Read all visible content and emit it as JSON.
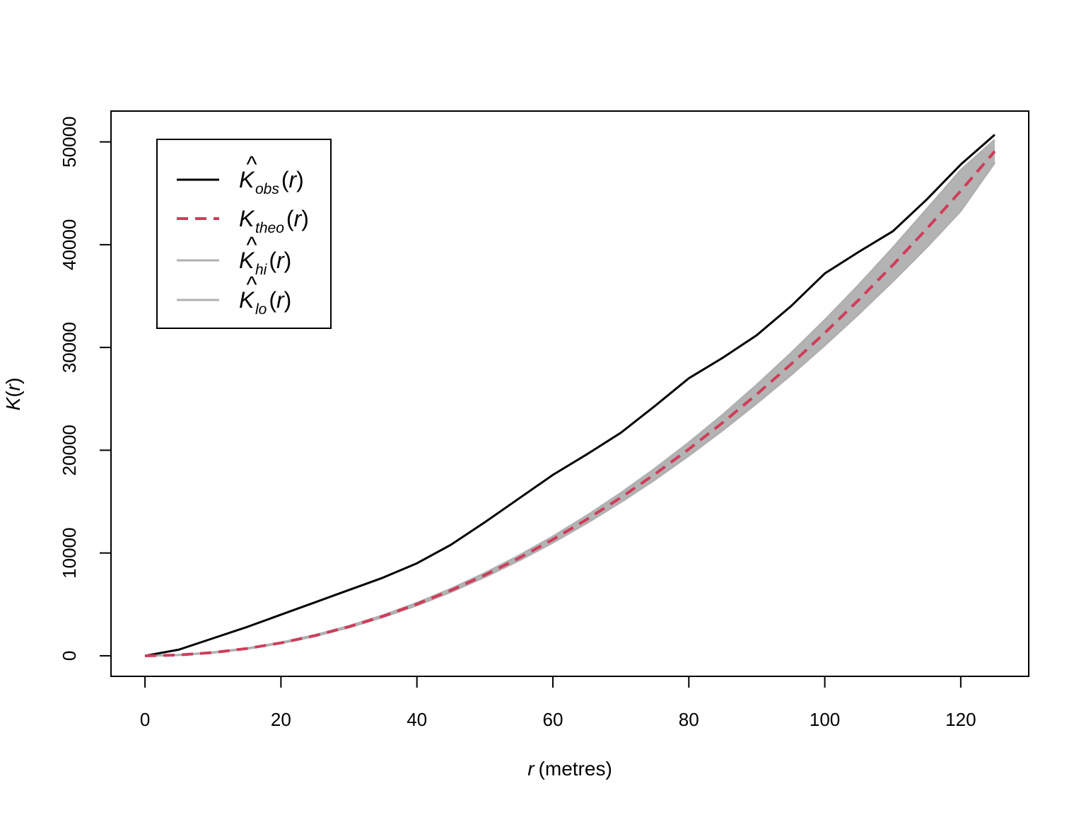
{
  "chart_data": {
    "type": "line",
    "xlabel": {
      "var": "r",
      "unit": "(metres)"
    },
    "ylabel": {
      "func": "K",
      "arg": "r"
    },
    "xlim": [
      -5,
      130
    ],
    "ylim": [
      -2000,
      53000
    ],
    "xticks": [
      0,
      20,
      40,
      60,
      80,
      100,
      120
    ],
    "yticks": [
      0,
      10000,
      20000,
      30000,
      40000,
      50000
    ],
    "legend_position": "top-left",
    "x": [
      0,
      5,
      10,
      15,
      20,
      25,
      30,
      35,
      40,
      45,
      50,
      55,
      60,
      65,
      70,
      75,
      80,
      85,
      90,
      95,
      100,
      105,
      110,
      115,
      120,
      125
    ],
    "series": [
      {
        "name": "K obs (r)",
        "symbol": "K",
        "hat": true,
        "sub": "obs",
        "color": "#000000",
        "dash": "solid",
        "values": [
          0,
          600,
          1700,
          2800,
          4000,
          5200,
          6400,
          7600,
          9000,
          10800,
          13000,
          15300,
          17600,
          19600,
          21700,
          24300,
          27000,
          29000,
          31200,
          34000,
          37200,
          39300,
          41300,
          44400,
          47800,
          50700
        ]
      },
      {
        "name": "K theo (r)",
        "symbol": "K",
        "hat": false,
        "sub": "theo",
        "color": "#d03c5a",
        "dash": "dashed",
        "values": [
          0,
          78,
          314,
          707,
          1257,
          1963,
          2827,
          3848,
          5027,
          6362,
          7854,
          9503,
          11310,
          13273,
          15394,
          17671,
          20106,
          22698,
          25447,
          28353,
          31416,
          34636,
          38013,
          41548,
          45239,
          49087
        ]
      },
      {
        "name": "K hi (r)",
        "symbol": "K",
        "hat": true,
        "sub": "hi",
        "color": "#b0b0b0",
        "dash": "solid",
        "values": [
          0,
          80,
          330,
          730,
          1290,
          2010,
          2890,
          3930,
          5140,
          6510,
          8040,
          9740,
          11600,
          13630,
          15830,
          18200,
          20740,
          23450,
          26350,
          29420,
          32660,
          36080,
          39680,
          43450,
          47250,
          50200
        ]
      },
      {
        "name": "K lo (r)",
        "symbol": "K",
        "hat": true,
        "sub": "lo",
        "color": "#b0b0b0",
        "dash": "solid",
        "values": [
          0,
          76,
          300,
          685,
          1220,
          1915,
          2765,
          3765,
          4915,
          6215,
          7670,
          9270,
          11020,
          12920,
          14960,
          17140,
          19480,
          21960,
          24580,
          27320,
          30220,
          33260,
          36440,
          39760,
          43300,
          48000
        ]
      }
    ]
  }
}
